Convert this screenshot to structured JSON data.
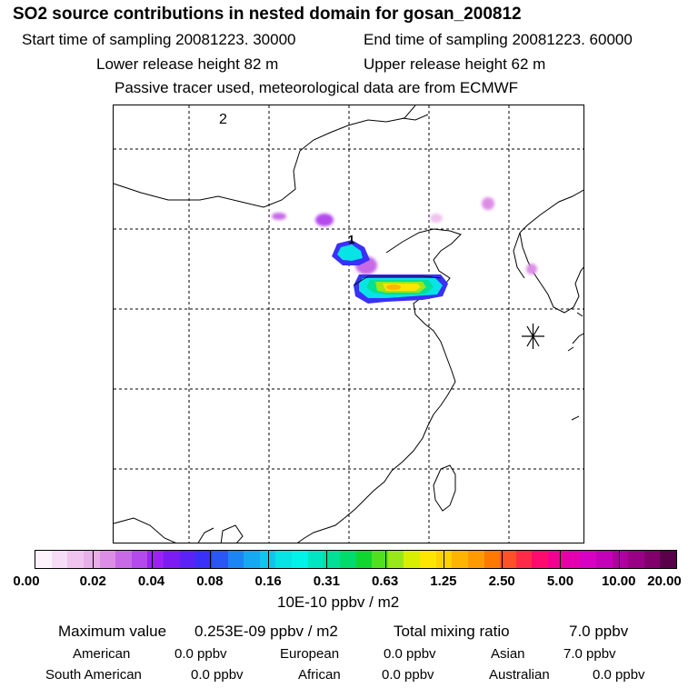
{
  "header": {
    "title": "SO2 source contributions in nested domain for gosan_200812",
    "start_time": "Start time of sampling 20081223. 30000",
    "end_time": "End time of sampling 20081223. 60000",
    "lower_release": "Lower release height   82 m",
    "upper_release": "Upper release height   62 m",
    "tracer_note": "Passive tracer used, meteorological data are from ECMWF"
  },
  "map": {
    "label_1": "1",
    "label_2": "2",
    "receptor_icon": "asterisk-receptor-icon"
  },
  "colorbar": {
    "tick_labels": [
      "0.00",
      "0.02",
      "0.04",
      "0.08",
      "0.16",
      "0.31",
      "0.63",
      "1.25",
      "2.50",
      "5.00",
      "10.00",
      "20.00"
    ],
    "colors": [
      "#fdf3fd",
      "#f6dcf6",
      "#efc4ef",
      "#e8aee8",
      "#dc8ee6",
      "#c86ae6",
      "#b449ee",
      "#9b22f4",
      "#7c1cf2",
      "#5a22f6",
      "#3a30f8",
      "#2a56f6",
      "#1b86f3",
      "#16a8f2",
      "#10c6ee",
      "#08e4e6",
      "#00f2e8",
      "#00e6c2",
      "#00e096",
      "#00dc6c",
      "#10d630",
      "#50e020",
      "#98e81c",
      "#d8f000",
      "#ffe600",
      "#ffd200",
      "#ffb400",
      "#ff9a00",
      "#ff7800",
      "#ff5028",
      "#ff2a48",
      "#ff0a6e",
      "#f20094",
      "#e400ae",
      "#d800c2",
      "#c400b8",
      "#b0009e",
      "#9a0086",
      "#82006c",
      "#5a004a"
    ],
    "units": "10E-10 ppbv / m2"
  },
  "summary": {
    "max_label": "Maximum value",
    "max_value": "0.253E-09 ppbv / m2",
    "total_label": "Total mixing ratio",
    "total_value": "7.0 ppbv",
    "regions": [
      {
        "name": "American",
        "value": "0.0 ppbv"
      },
      {
        "name": "European",
        "value": "0.0 ppbv"
      },
      {
        "name": "Asian",
        "value": "7.0 ppbv"
      },
      {
        "name": "South American",
        "value": "0.0 ppbv"
      },
      {
        "name": "African",
        "value": "0.0 ppbv"
      },
      {
        "name": "Australian",
        "value": "0.0 ppbv"
      }
    ]
  }
}
